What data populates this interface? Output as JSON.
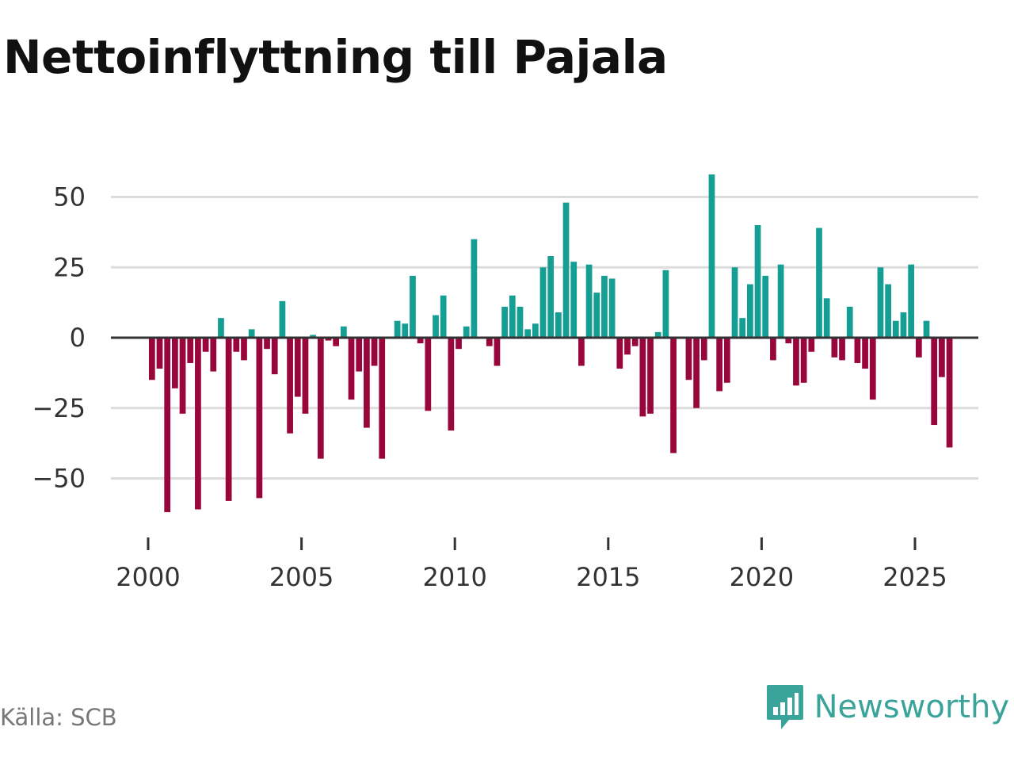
{
  "title": "Nettoinflyttning till Pajala",
  "source": "Källa: SCB",
  "brand": {
    "name": "Newsworthy",
    "icon": "newsworthy-logo-icon"
  },
  "colors": {
    "positive": "#149e94",
    "negative": "#99063b",
    "grid": "#dcdcdc",
    "zero": "#333333"
  },
  "chart_data": {
    "type": "bar",
    "title": "Nettoinflyttning till Pajala",
    "xlabel": "",
    "ylabel": "",
    "period": "quarterly",
    "x_start": 2000,
    "x_end": 2026,
    "ylim": [
      -68,
      64
    ],
    "yticks": [
      50,
      25,
      0,
      -25,
      -50
    ],
    "ytick_labels": [
      "50",
      "25",
      "0",
      "−25",
      "−50"
    ],
    "xticks": [
      2000,
      2005,
      2010,
      2015,
      2020,
      2025
    ],
    "xtick_labels": [
      "2000",
      "2005",
      "2010",
      "2015",
      "2020",
      "2025"
    ],
    "grid": true,
    "values": [
      -15,
      -11,
      -62,
      -18,
      -27,
      -9,
      -61,
      -5,
      -12,
      7,
      -58,
      -5,
      -8,
      3,
      -57,
      -4,
      -13,
      13,
      -34,
      -21,
      -27,
      1,
      -43,
      -1,
      -3,
      4,
      -22,
      -12,
      -32,
      -10,
      -43,
      0,
      6,
      5,
      22,
      -2,
      -26,
      8,
      15,
      -33,
      -4,
      4,
      35,
      0,
      -3,
      -10,
      11,
      15,
      11,
      3,
      5,
      25,
      29,
      9,
      48,
      27,
      -10,
      26,
      16,
      22,
      21,
      -11,
      -6,
      -3,
      -28,
      -27,
      2,
      24,
      -41,
      0,
      -15,
      -25,
      -8,
      58,
      -19,
      -16,
      25,
      7,
      19,
      40,
      22,
      -8,
      26,
      -2,
      -17,
      -16,
      -5,
      39,
      14,
      -7,
      -8,
      11,
      -9,
      -11,
      -22,
      25,
      19,
      6,
      9,
      26,
      -7,
      6,
      -31,
      -14,
      -39
    ]
  }
}
